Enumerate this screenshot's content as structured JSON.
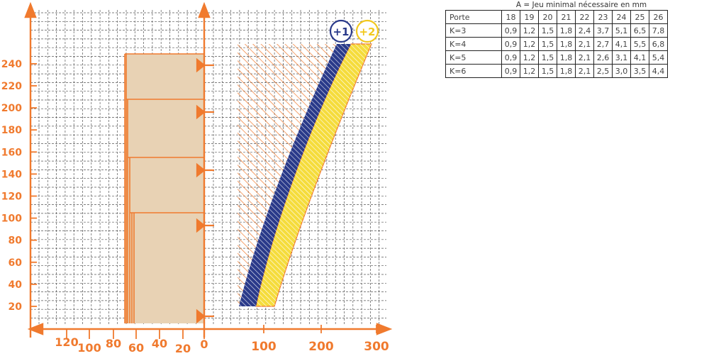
{
  "diagram": {
    "y_ticks": [
      "20",
      "40",
      "60",
      "80",
      "100",
      "120",
      "140",
      "160",
      "180",
      "200",
      "220",
      "240"
    ],
    "x_ticks_right": [
      "100",
      "200",
      "300"
    ],
    "x_ticks_left": [
      "120",
      "100",
      "80",
      "60",
      "40",
      "20",
      "0"
    ],
    "badges": [
      {
        "label": "+1",
        "color": "#2a3a8a"
      },
      {
        "label": "+2",
        "color": "#f2c81e"
      }
    ],
    "colors": {
      "accent": "#f07a2e",
      "grid": "#555555",
      "beige_panel": "#e8d2b4",
      "blue_band": "#2a3a8a",
      "yellow_band": "#f5dc3c"
    }
  },
  "table": {
    "caption": "A = Jeu minimal nécessaire en mm",
    "header": [
      "Porte",
      "18",
      "19",
      "20",
      "21",
      "22",
      "23",
      "24",
      "25",
      "26"
    ],
    "rows": [
      [
        "K=3",
        "0,9",
        "1,2",
        "1,5",
        "1,8",
        "2,4",
        "3,7",
        "5,1",
        "6,5",
        "7,8"
      ],
      [
        "K=4",
        "0,9",
        "1,2",
        "1,5",
        "1,8",
        "2,1",
        "2,7",
        "4,1",
        "5,5",
        "6,8"
      ],
      [
        "K=5",
        "0,9",
        "1,2",
        "1,5",
        "1,8",
        "2,1",
        "2,6",
        "3,1",
        "4,1",
        "5,4"
      ],
      [
        "K=6",
        "0,9",
        "1,2",
        "1,5",
        "1,8",
        "2,1",
        "2,5",
        "3,0",
        "3,5",
        "4,4"
      ]
    ]
  }
}
